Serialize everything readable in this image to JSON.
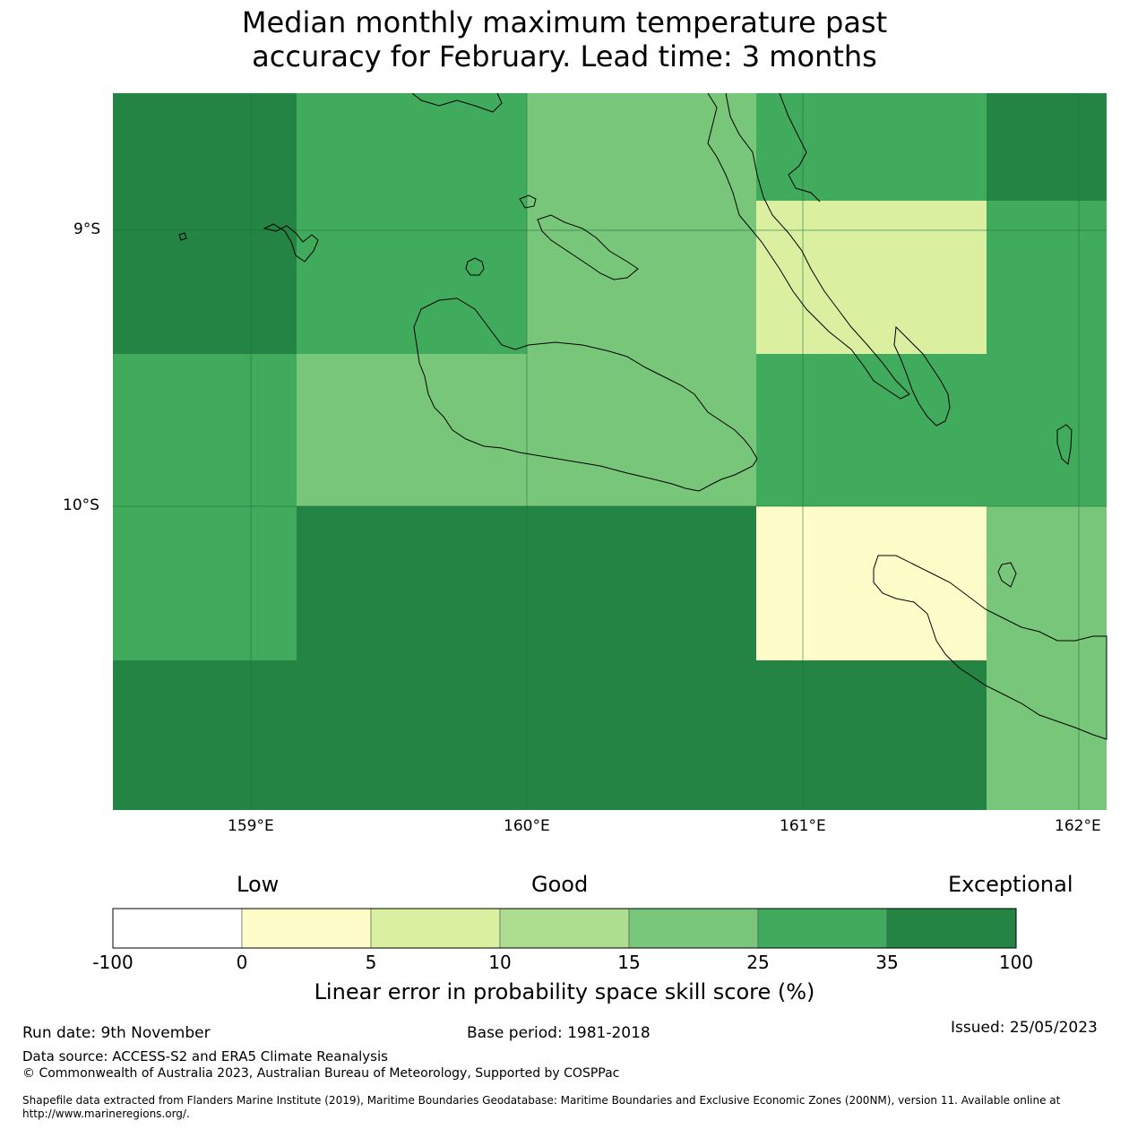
{
  "title": {
    "line1": "Median monthly maximum temperature past",
    "line2": "accuracy for February. Lead time: 3 months"
  },
  "map": {
    "lat_labels": [
      "9°S",
      "10°S"
    ],
    "lon_labels": [
      "159°E",
      "160°E",
      "161°E",
      "162°E"
    ],
    "cells_skill_class": [
      [
        "35-100",
        "25-35",
        "15-25",
        "25-35",
        "35-100"
      ],
      [
        "35-100",
        "25-35",
        "15-25",
        "5-10",
        "25-35"
      ],
      [
        "25-35",
        "15-25",
        "15-25",
        "25-35",
        "25-35"
      ],
      [
        "25-35",
        "35-100",
        "35-100",
        "0-5",
        "15-25"
      ],
      [
        "35-100",
        "35-100",
        "35-100",
        "35-100",
        "15-25"
      ]
    ]
  },
  "legend": {
    "categories": [
      "Low",
      "Good",
      "Exceptional"
    ],
    "ticks": [
      "-100",
      "0",
      "5",
      "10",
      "15",
      "25",
      "35",
      "100"
    ],
    "colors": [
      "#ffffff",
      "#fefdca",
      "#daef9f",
      "#addd8e",
      "#78c679",
      "#41ab5d",
      "#238443"
    ],
    "title": "Linear error in probability space skill score (%)"
  },
  "footer": {
    "run_date": "Run date: 9th November",
    "base_period": "Base period: 1981-2018",
    "issued": "Issued: 25/05/2023",
    "data_source": "Data source: ACCESS-S2 and ERA5 Climate Reanalysis",
    "copyright": "© Commonwealth of Australia 2023, Australian Bureau of Meteorology, Supported by COSPPac",
    "shapefile": "Shapefile data extracted from Flanders Marine Institute (2019), Maritime Boundaries Geodatabase: Maritime Boundaries and Exclusive Economic Zones (200NM), version 11. Available online at http://www.marineregions.org/."
  }
}
